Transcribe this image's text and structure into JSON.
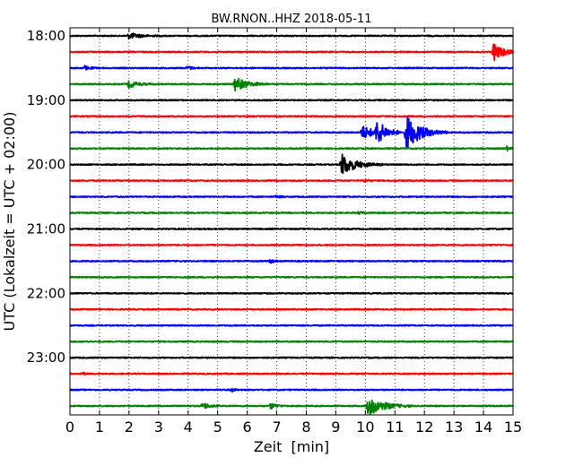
{
  "chart_data": {
    "type": "line",
    "title": "BW.RNON..HHZ 2018-05-11",
    "xlabel": "Zeit  [min]",
    "ylabel": "UTC (Lokalzeit = UTC + 02:00)",
    "xlim": [
      0,
      15
    ],
    "xticks": [
      0,
      1,
      2,
      3,
      4,
      5,
      6,
      7,
      8,
      9,
      10,
      11,
      12,
      13,
      14,
      15
    ],
    "grid": "vertical dotted",
    "row_minutes": 15,
    "y_start": "18:00",
    "y_end": "23:45",
    "ytick_labels": [
      "18:00",
      "19:00",
      "20:00",
      "21:00",
      "22:00",
      "23:00"
    ],
    "color_cycle": [
      "#000000",
      "#ff0000",
      "#0000ff",
      "#008000"
    ],
    "traces": [
      {
        "start": "18:00",
        "events": [
          {
            "t": 2.0,
            "amp": 0.3,
            "dur": 1.2
          }
        ]
      },
      {
        "start": "18:15",
        "events": [
          {
            "t": 14.35,
            "amp": 0.9,
            "dur": 1.0
          }
        ]
      },
      {
        "start": "18:30",
        "events": [
          {
            "t": 0.5,
            "amp": 0.2,
            "dur": 0.5
          },
          {
            "t": 4.0,
            "amp": 0.2,
            "dur": 0.4
          }
        ]
      },
      {
        "start": "18:45",
        "events": [
          {
            "t": 2.0,
            "amp": 0.35,
            "dur": 0.9
          },
          {
            "t": 5.6,
            "amp": 0.75,
            "dur": 1.2
          }
        ]
      },
      {
        "start": "19:00",
        "events": []
      },
      {
        "start": "19:15",
        "events": []
      },
      {
        "start": "19:30",
        "events": [
          {
            "t": 9.9,
            "amp": 0.7,
            "dur": 1.2
          },
          {
            "t": 10.4,
            "amp": 1.1,
            "dur": 1.0
          },
          {
            "t": 11.4,
            "amp": 1.8,
            "dur": 1.4
          }
        ]
      },
      {
        "start": "19:45",
        "events": [
          {
            "t": 14.8,
            "amp": 0.2,
            "dur": 0.3
          }
        ]
      },
      {
        "start": "20:00",
        "events": [
          {
            "t": 9.2,
            "amp": 1.1,
            "dur": 1.4
          }
        ]
      },
      {
        "start": "20:15",
        "events": [
          {
            "t": 10.0,
            "amp": 0.15,
            "dur": 0.3
          }
        ]
      },
      {
        "start": "20:30",
        "events": [
          {
            "t": 7.0,
            "amp": 0.15,
            "dur": 0.3
          }
        ]
      },
      {
        "start": "20:45",
        "events": [
          {
            "t": 9.8,
            "amp": 0.15,
            "dur": 0.3
          }
        ]
      },
      {
        "start": "21:00",
        "events": []
      },
      {
        "start": "21:15",
        "events": []
      },
      {
        "start": "21:30",
        "events": [
          {
            "t": 6.8,
            "amp": 0.2,
            "dur": 0.3
          }
        ]
      },
      {
        "start": "21:45",
        "events": []
      },
      {
        "start": "22:00",
        "events": []
      },
      {
        "start": "22:15",
        "events": []
      },
      {
        "start": "22:30",
        "events": []
      },
      {
        "start": "22:45",
        "events": []
      },
      {
        "start": "23:00",
        "events": []
      },
      {
        "start": "23:15",
        "events": [
          {
            "t": 0.4,
            "amp": 0.15,
            "dur": 0.3
          }
        ]
      },
      {
        "start": "23:30",
        "events": [
          {
            "t": 5.5,
            "amp": 0.15,
            "dur": 0.3
          }
        ]
      },
      {
        "start": "23:45",
        "events": [
          {
            "t": 4.5,
            "amp": 0.35,
            "dur": 0.6
          },
          {
            "t": 6.8,
            "amp": 0.3,
            "dur": 0.5
          },
          {
            "t": 10.1,
            "amp": 1.0,
            "dur": 1.5
          }
        ]
      }
    ]
  }
}
